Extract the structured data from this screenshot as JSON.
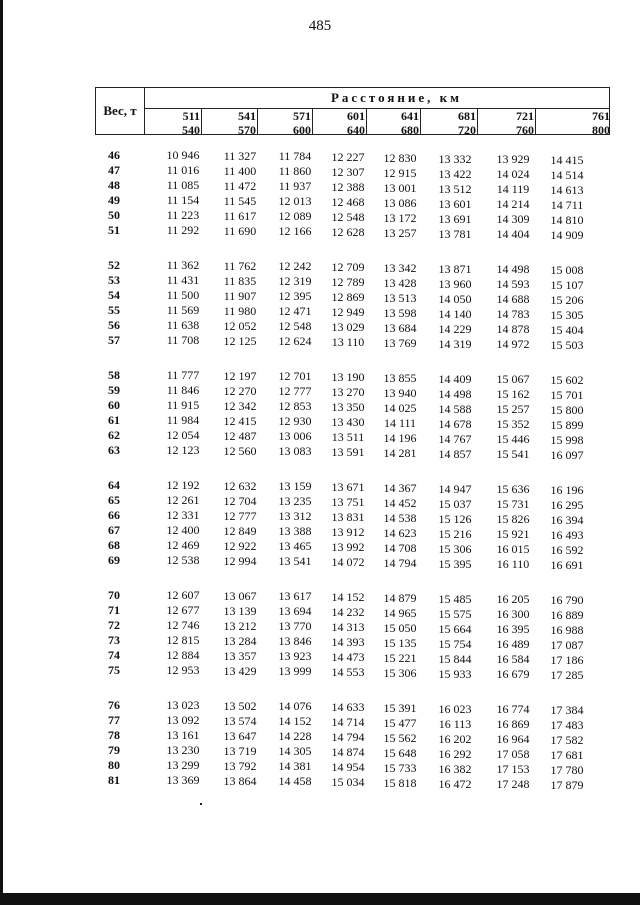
{
  "page_number": "485",
  "header": {
    "weight_label": "Вес, т",
    "distance_label": "Расстояние, км",
    "ranges": [
      [
        "511",
        "540"
      ],
      [
        "541",
        "570"
      ],
      [
        "571",
        "600"
      ],
      [
        "601",
        "640"
      ],
      [
        "641",
        "680"
      ],
      [
        "681",
        "720"
      ],
      [
        "721",
        "760"
      ],
      [
        "761",
        "800"
      ]
    ]
  },
  "blocks": [
    [
      {
        "w": "46",
        "v": [
          "10 946",
          "11 327",
          "11 784",
          "12 227",
          "12 830",
          "13 332",
          "13 929",
          "14 415"
        ]
      },
      {
        "w": "47",
        "v": [
          "11 016",
          "11 400",
          "11 860",
          "12 307",
          "12 915",
          "13 422",
          "14 024",
          "14 514"
        ]
      },
      {
        "w": "48",
        "v": [
          "11 085",
          "11 472",
          "11 937",
          "12 388",
          "13 001",
          "13 512",
          "14 119",
          "14 613"
        ]
      },
      {
        "w": "49",
        "v": [
          "11 154",
          "11 545",
          "12 013",
          "12 468",
          "13 086",
          "13 601",
          "14 214",
          "14 711"
        ]
      },
      {
        "w": "50",
        "v": [
          "11 223",
          "11 617",
          "12 089",
          "12 548",
          "13 172",
          "13 691",
          "14 309",
          "14 810"
        ]
      },
      {
        "w": "51",
        "v": [
          "11 292",
          "11 690",
          "12 166",
          "12 628",
          "13 257",
          "13 781",
          "14 404",
          "14 909"
        ]
      }
    ],
    [
      {
        "w": "52",
        "v": [
          "11 362",
          "11 762",
          "12 242",
          "12 709",
          "13 342",
          "13 871",
          "14 498",
          "15 008"
        ]
      },
      {
        "w": "53",
        "v": [
          "11 431",
          "11 835",
          "12 319",
          "12 789",
          "13 428",
          "13 960",
          "14 593",
          "15 107"
        ]
      },
      {
        "w": "54",
        "v": [
          "11 500",
          "11 907",
          "12 395",
          "12 869",
          "13 513",
          "14 050",
          "14 688",
          "15 206"
        ]
      },
      {
        "w": "55",
        "v": [
          "11 569",
          "11 980",
          "12 471",
          "12 949",
          "13 598",
          "14 140",
          "14 783",
          "15 305"
        ]
      },
      {
        "w": "56",
        "v": [
          "11 638",
          "12 052",
          "12 548",
          "13 029",
          "13 684",
          "14 229",
          "14 878",
          "15 404"
        ]
      },
      {
        "w": "57",
        "v": [
          "11 708",
          "12 125",
          "12 624",
          "13 110",
          "13 769",
          "14 319",
          "14 972",
          "15 503"
        ]
      }
    ],
    [
      {
        "w": "58",
        "v": [
          "11 777",
          "12 197",
          "12 701",
          "13 190",
          "13 855",
          "14 409",
          "15 067",
          "15 602"
        ]
      },
      {
        "w": "59",
        "v": [
          "11 846",
          "12 270",
          "12 777",
          "13 270",
          "13 940",
          "14 498",
          "15 162",
          "15 701"
        ]
      },
      {
        "w": "60",
        "v": [
          "11 915",
          "12 342",
          "12 853",
          "13 350",
          "14 025",
          "14 588",
          "15 257",
          "15 800"
        ]
      },
      {
        "w": "61",
        "v": [
          "11 984",
          "12 415",
          "12 930",
          "13 430",
          "14 111",
          "14 678",
          "15 352",
          "15 899"
        ]
      },
      {
        "w": "62",
        "v": [
          "12 054",
          "12 487",
          "13 006",
          "13 511",
          "14 196",
          "14 767",
          "15 446",
          "15 998"
        ]
      },
      {
        "w": "63",
        "v": [
          "12 123",
          "12 560",
          "13 083",
          "13 591",
          "14 281",
          "14 857",
          "15 541",
          "16 097"
        ]
      }
    ],
    [
      {
        "w": "64",
        "v": [
          "12 192",
          "12 632",
          "13 159",
          "13 671",
          "14 367",
          "14 947",
          "15 636",
          "16 196"
        ]
      },
      {
        "w": "65",
        "v": [
          "12 261",
          "12 704",
          "13 235",
          "13 751",
          "14 452",
          "15 037",
          "15 731",
          "16 295"
        ]
      },
      {
        "w": "66",
        "v": [
          "12 331",
          "12 777",
          "13 312",
          "13 831",
          "14 538",
          "15 126",
          "15 826",
          "16 394"
        ]
      },
      {
        "w": "67",
        "v": [
          "12 400",
          "12 849",
          "13 388",
          "13 912",
          "14 623",
          "15 216",
          "15 921",
          "16 493"
        ]
      },
      {
        "w": "68",
        "v": [
          "12 469",
          "12 922",
          "13 465",
          "13 992",
          "14 708",
          "15 306",
          "16 015",
          "16 592"
        ]
      },
      {
        "w": "69",
        "v": [
          "12 538",
          "12 994",
          "13 541",
          "14 072",
          "14 794",
          "15 395",
          "16 110",
          "16 691"
        ]
      }
    ],
    [
      {
        "w": "70",
        "v": [
          "12 607",
          "13 067",
          "13 617",
          "14 152",
          "14 879",
          "15 485",
          "16 205",
          "16 790"
        ]
      },
      {
        "w": "71",
        "v": [
          "12 677",
          "13 139",
          "13 694",
          "14 232",
          "14 965",
          "15 575",
          "16 300",
          "16 889"
        ]
      },
      {
        "w": "72",
        "v": [
          "12 746",
          "13 212",
          "13 770",
          "14 313",
          "15 050",
          "15 664",
          "16 395",
          "16 988"
        ]
      },
      {
        "w": "73",
        "v": [
          "12 815",
          "13 284",
          "13 846",
          "14 393",
          "15 135",
          "15 754",
          "16 489",
          "17 087"
        ]
      },
      {
        "w": "74",
        "v": [
          "12 884",
          "13 357",
          "13 923",
          "14 473",
          "15 221",
          "15 844",
          "16 584",
          "17 186"
        ]
      },
      {
        "w": "75",
        "v": [
          "12 953",
          "13 429",
          "13 999",
          "14 553",
          "15 306",
          "15 933",
          "16 679",
          "17 285"
        ]
      }
    ],
    [
      {
        "w": "76",
        "v": [
          "13 023",
          "13 502",
          "14 076",
          "14 633",
          "15 391",
          "16 023",
          "16 774",
          "17 384"
        ]
      },
      {
        "w": "77",
        "v": [
          "13 092",
          "13 574",
          "14 152",
          "14 714",
          "15 477",
          "16 113",
          "16 869",
          "17 483"
        ]
      },
      {
        "w": "78",
        "v": [
          "13 161",
          "13 647",
          "14 228",
          "14 794",
          "15 562",
          "16 202",
          "16 964",
          "17 582"
        ]
      },
      {
        "w": "79",
        "v": [
          "13 230",
          "13 719",
          "14 305",
          "14 874",
          "15 648",
          "16 292",
          "17 058",
          "17 681"
        ]
      },
      {
        "w": "80",
        "v": [
          "13 299",
          "13 792",
          "14 381",
          "14 954",
          "15 733",
          "16 382",
          "17 153",
          "17 780"
        ]
      },
      {
        "w": "81",
        "v": [
          "13 369",
          "13 864",
          "14 458",
          "15 034",
          "15 818",
          "16 472",
          "17 248",
          "17 879"
        ]
      }
    ]
  ]
}
